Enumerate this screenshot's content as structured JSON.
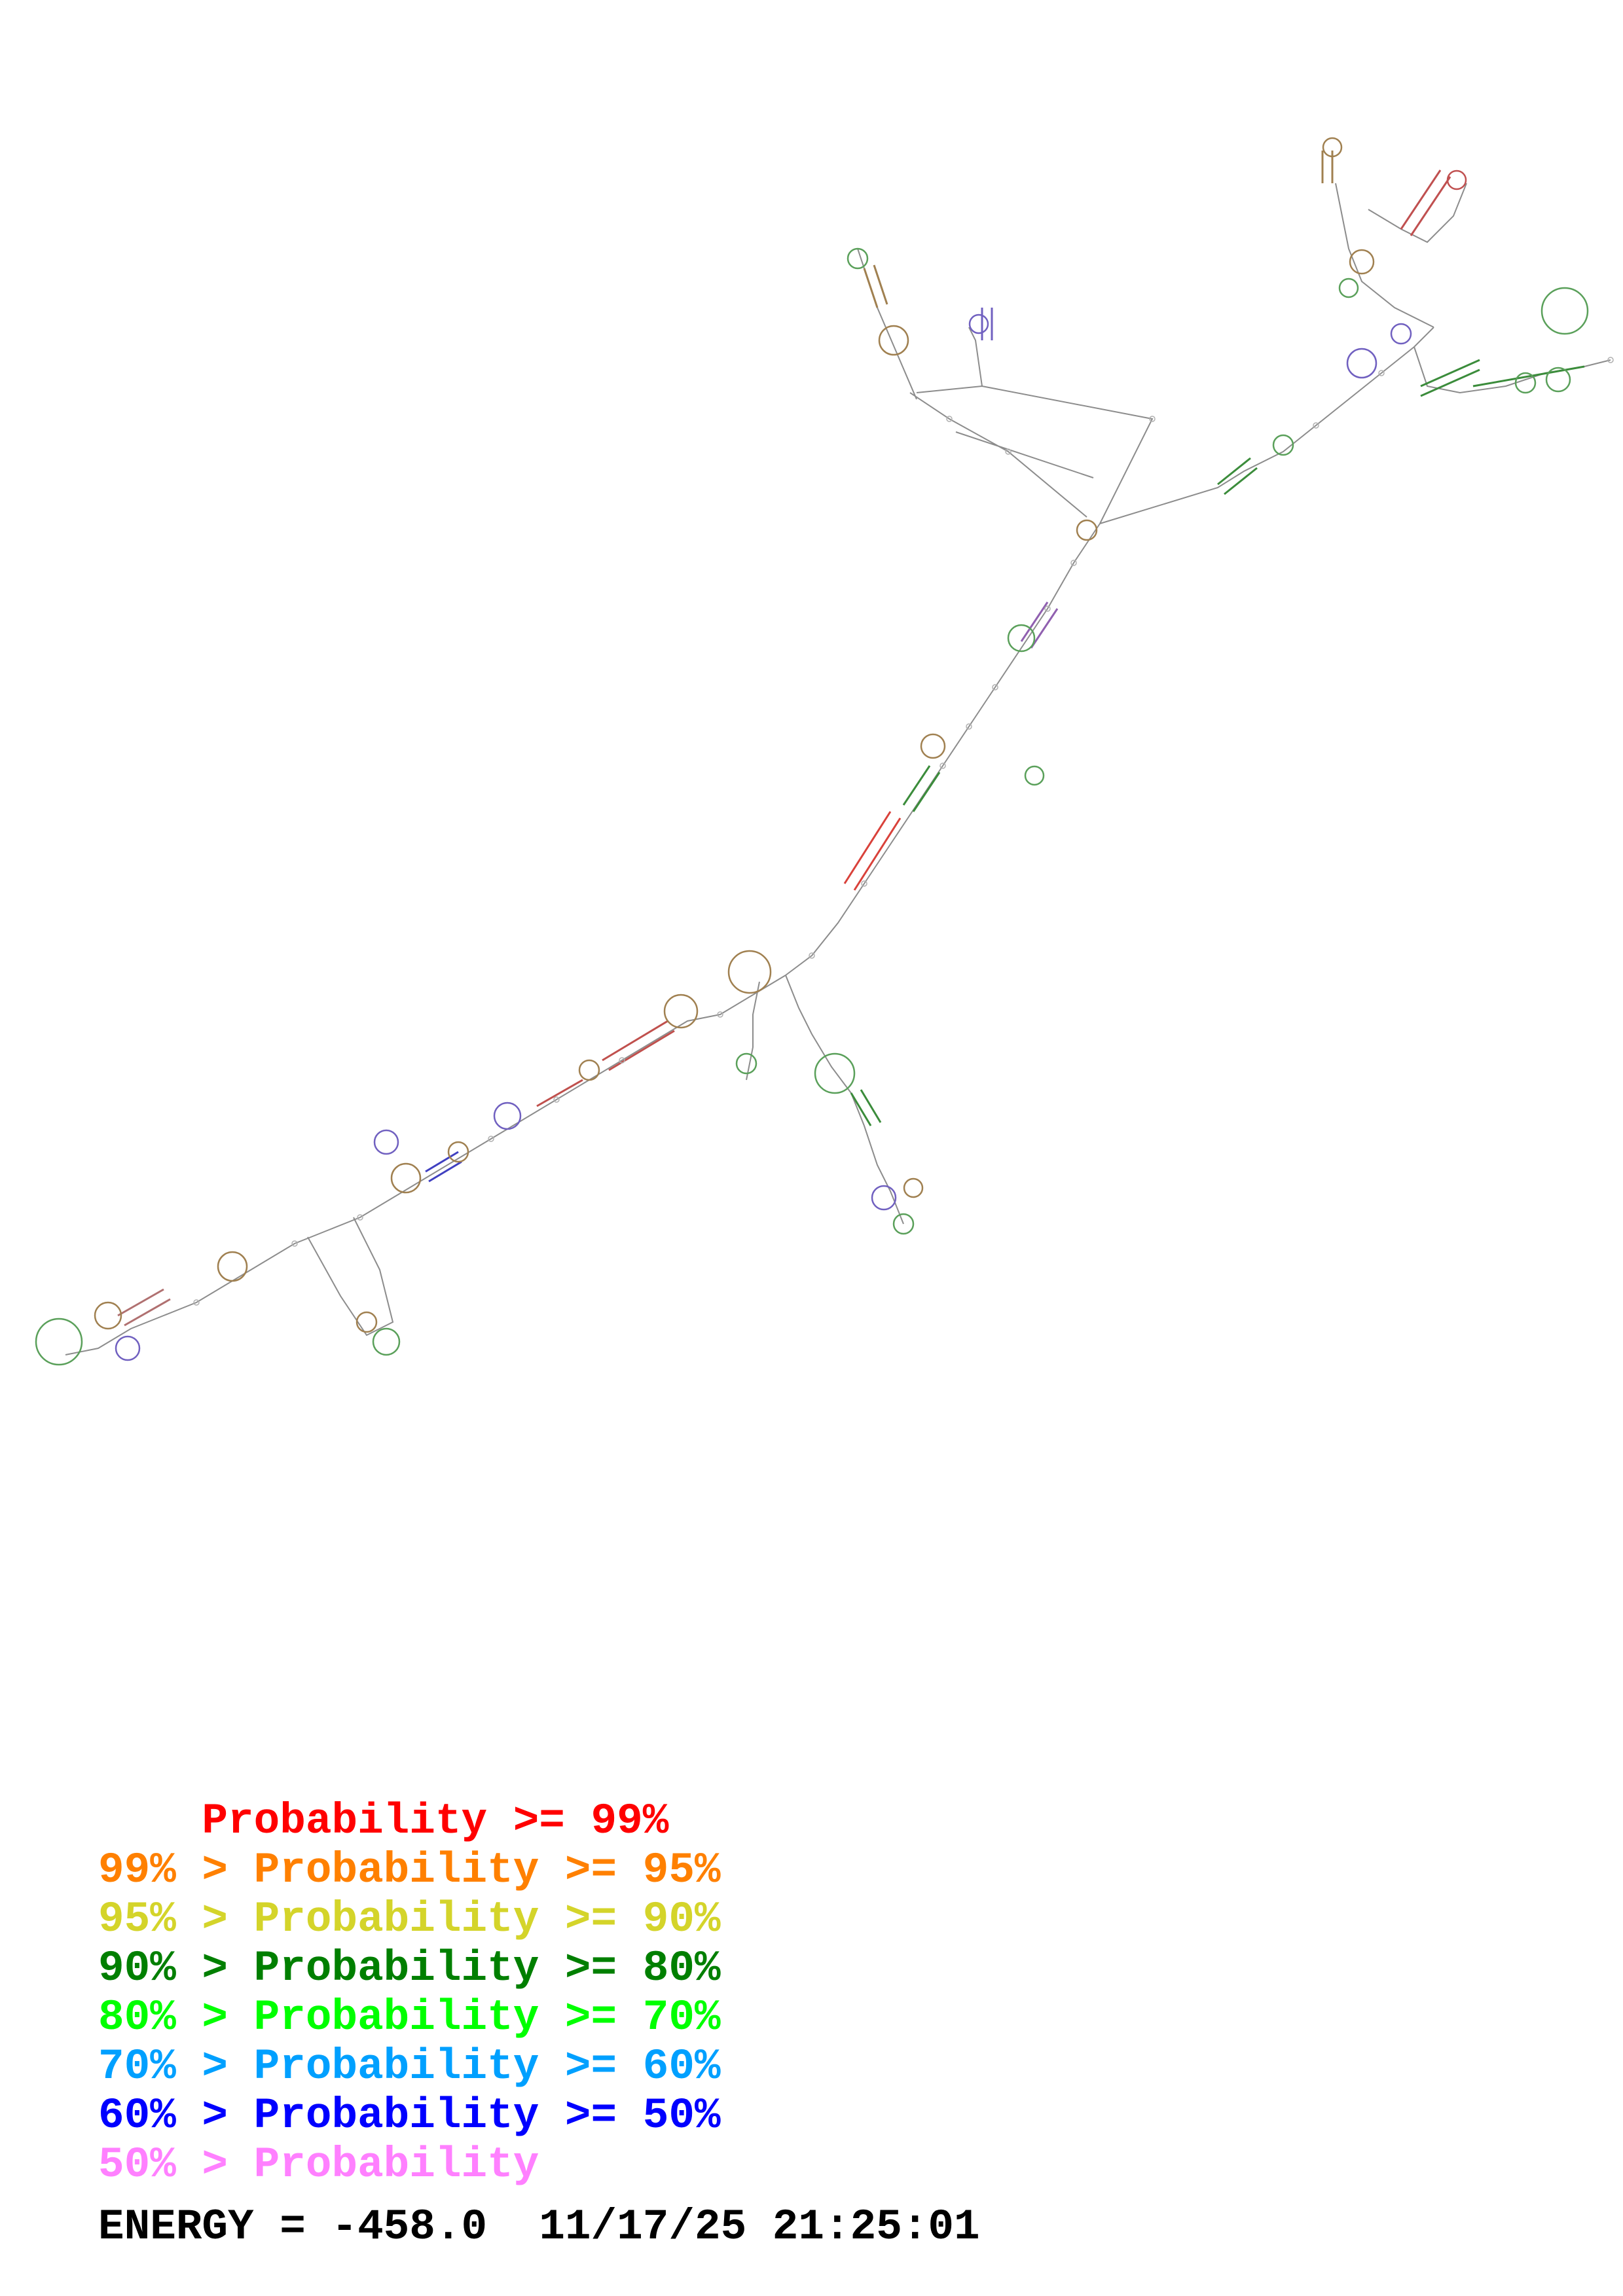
{
  "legend": {
    "items": [
      {
        "text": "    Probability >= 99%",
        "color": "#ff0000"
      },
      {
        "text": "99% > Probability >= 95%",
        "color": "#ff8000"
      },
      {
        "text": "95% > Probability >= 90%",
        "color": "#d4d42a"
      },
      {
        "text": "90% > Probability >= 80%",
        "color": "#007f00"
      },
      {
        "text": "80% > Probability >= 70%",
        "color": "#00ff00"
      },
      {
        "text": "70% > Probability >= 60%",
        "color": "#00a0ff"
      },
      {
        "text": "60% > Probability >= 50%",
        "color": "#0000ff"
      },
      {
        "text": "50% > Probability",
        "color": "#ff80ff"
      }
    ]
  },
  "footer": {
    "energy_label": "ENERGY = ",
    "energy_value": "-458.0",
    "timestamp": "11/17/25 21:25:01"
  },
  "diagram": {
    "type": "rna-secondary-structure",
    "line_color": "#808080"
  }
}
